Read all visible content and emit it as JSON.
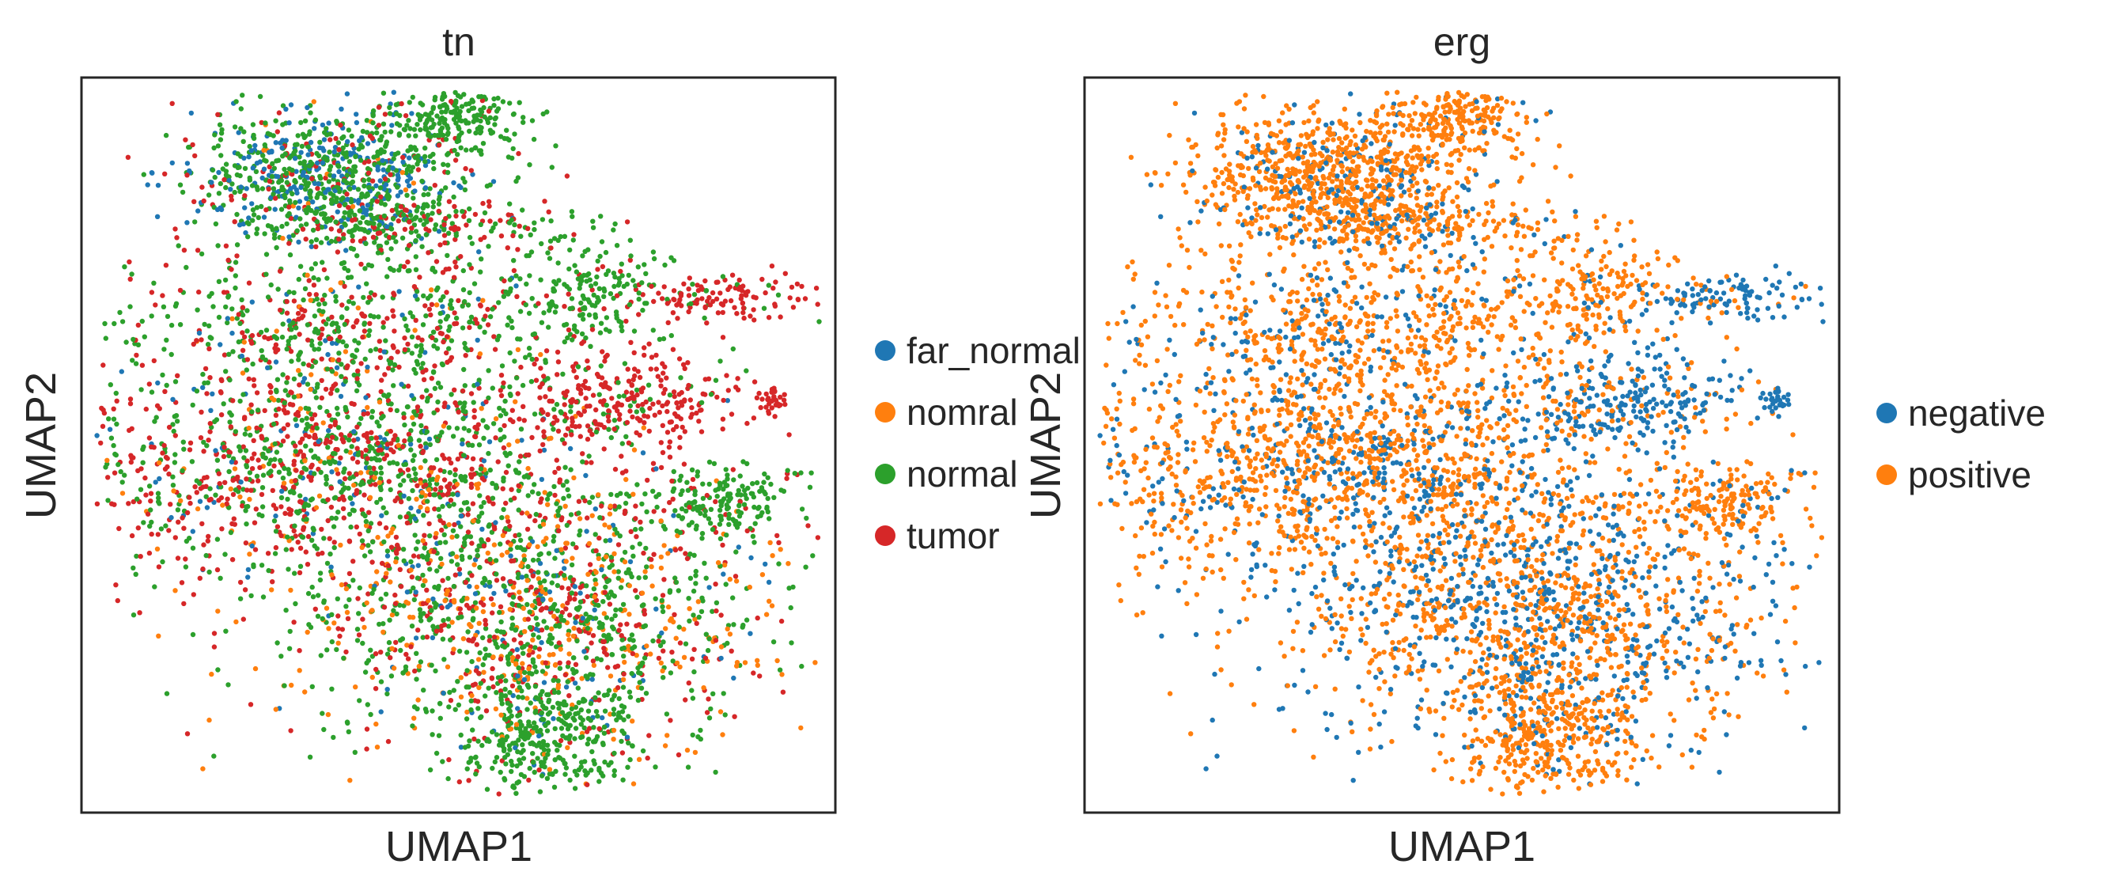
{
  "chart_data": [
    {
      "type": "scatter",
      "title": "tn",
      "xlabel": "UMAP1",
      "ylabel": "UMAP2",
      "xlim": [
        0,
        10
      ],
      "ylim": [
        0,
        10
      ],
      "grid": false,
      "legend_position": "right",
      "series": [
        {
          "name": "far_normal",
          "color": "#1f77b4"
        },
        {
          "name": "nomral",
          "color": "#ff7f0e"
        },
        {
          "name": "normal",
          "color": "#2ca02c"
        },
        {
          "name": "tumor",
          "color": "#d62728"
        }
      ]
    },
    {
      "type": "scatter",
      "title": "erg",
      "xlabel": "UMAP1",
      "ylabel": "UMAP2",
      "xlim": [
        0,
        10
      ],
      "ylim": [
        0,
        10
      ],
      "grid": false,
      "legend_position": "right",
      "series": [
        {
          "name": "negative",
          "color": "#1f77b4"
        },
        {
          "name": "positive",
          "color": "#ff7f0e"
        }
      ]
    }
  ]
}
